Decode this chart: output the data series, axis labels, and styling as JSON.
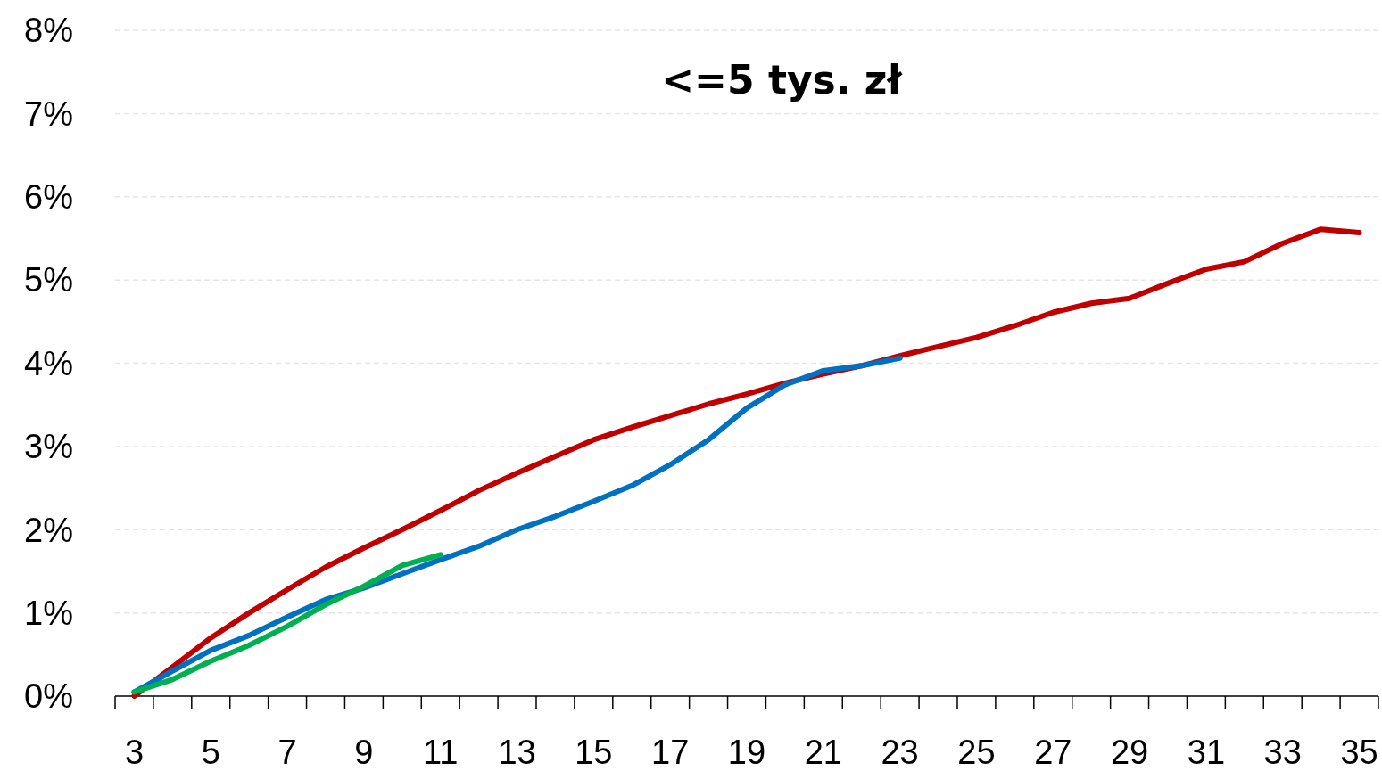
{
  "chart_data": {
    "type": "line",
    "title": "<=5 tys. zł",
    "x": [
      3,
      4,
      5,
      6,
      7,
      8,
      9,
      10,
      11,
      12,
      13,
      14,
      15,
      16,
      17,
      18,
      19,
      20,
      21,
      22,
      23,
      24,
      25,
      26,
      27,
      28,
      29,
      30,
      31,
      32,
      33,
      34,
      35
    ],
    "xlim": [
      2.5,
      35.5
    ],
    "xticks": [
      {
        "value": 2.5,
        "label": null
      },
      3,
      {
        "value": 3.5,
        "label": null
      },
      {
        "value": 4.5,
        "label": null
      },
      5,
      {
        "value": 5.5,
        "label": null
      },
      {
        "value": 6.5,
        "label": null
      },
      7,
      {
        "value": 7.5,
        "label": null
      },
      {
        "value": 8.5,
        "label": null
      },
      9,
      {
        "value": 9.5,
        "label": null
      },
      {
        "value": 10.5,
        "label": null
      },
      11,
      {
        "value": 11.5,
        "label": null
      },
      {
        "value": 12.5,
        "label": null
      },
      13,
      {
        "value": 13.5,
        "label": null
      },
      {
        "value": 14.5,
        "label": null
      },
      15,
      {
        "value": 15.5,
        "label": null
      },
      {
        "value": 16.5,
        "label": null
      },
      17,
      {
        "value": 17.5,
        "label": null
      },
      {
        "value": 18.5,
        "label": null
      },
      19,
      {
        "value": 19.5,
        "label": null
      },
      {
        "value": 20.5,
        "label": null
      },
      21,
      {
        "value": 21.5,
        "label": null
      },
      {
        "value": 22.5,
        "label": null
      },
      23,
      {
        "value": 23.5,
        "label": null
      },
      {
        "value": 24.5,
        "label": null
      },
      25,
      {
        "value": 25.5,
        "label": null
      },
      {
        "value": 26.5,
        "label": null
      },
      27,
      {
        "value": 27.5,
        "label": null
      },
      {
        "value": 28.5,
        "label": null
      },
      29,
      {
        "value": 29.5,
        "label": null
      },
      {
        "value": 30.5,
        "label": null
      },
      31,
      {
        "value": 31.5,
        "label": null
      },
      {
        "value": 32.5,
        "label": null
      },
      33,
      {
        "value": 33.5,
        "label": null
      },
      {
        "value": 34.5,
        "label": null
      },
      35,
      {
        "value": 35.5,
        "label": null
      }
    ],
    "series": [
      {
        "color": "#c00000",
        "values": [
          0.0,
          0.35,
          0.7,
          1.0,
          1.28,
          1.55,
          1.78,
          2.0,
          2.23,
          2.47,
          2.68,
          2.88,
          3.08,
          3.23,
          3.37,
          3.51,
          3.63,
          3.76,
          3.87,
          3.97,
          4.09,
          4.2,
          4.31,
          4.45,
          4.61,
          4.72,
          4.78,
          4.96,
          5.13,
          5.22,
          5.44,
          5.61,
          5.57
        ]
      },
      {
        "color": "#0070c0",
        "values": [
          0.05,
          0.3,
          0.55,
          0.73,
          0.95,
          1.16,
          1.3,
          1.47,
          1.64,
          1.8,
          2.0,
          2.16,
          2.34,
          2.53,
          2.78,
          3.08,
          3.46,
          3.74,
          3.91,
          3.97,
          4.06,
          null,
          null,
          null,
          null,
          null,
          null,
          null,
          null,
          null,
          null,
          null,
          null
        ]
      },
      {
        "color": "#00b050",
        "values": [
          0.05,
          0.2,
          0.42,
          0.61,
          0.84,
          1.1,
          1.32,
          1.57,
          1.7,
          null,
          null,
          null,
          null,
          null,
          null,
          null,
          null,
          null,
          null,
          null,
          null,
          null,
          null,
          null,
          null,
          null,
          null,
          null,
          null,
          null,
          null,
          null,
          null
        ]
      }
    ],
    "ylim": [
      0,
      8
    ],
    "yticks": [
      {
        "value": 0,
        "label": "0%"
      },
      {
        "value": 1,
        "label": "1%"
      },
      {
        "value": 2,
        "label": "2%"
      },
      {
        "value": 3,
        "label": "3%"
      },
      {
        "value": 4,
        "label": "4%"
      },
      {
        "value": 5,
        "label": "5%"
      },
      {
        "value": 6,
        "label": "6%"
      },
      {
        "value": 7,
        "label": "7%"
      },
      {
        "value": 8,
        "label": "8%"
      }
    ],
    "grid": "y",
    "marker": "none",
    "line_style": "solid"
  }
}
